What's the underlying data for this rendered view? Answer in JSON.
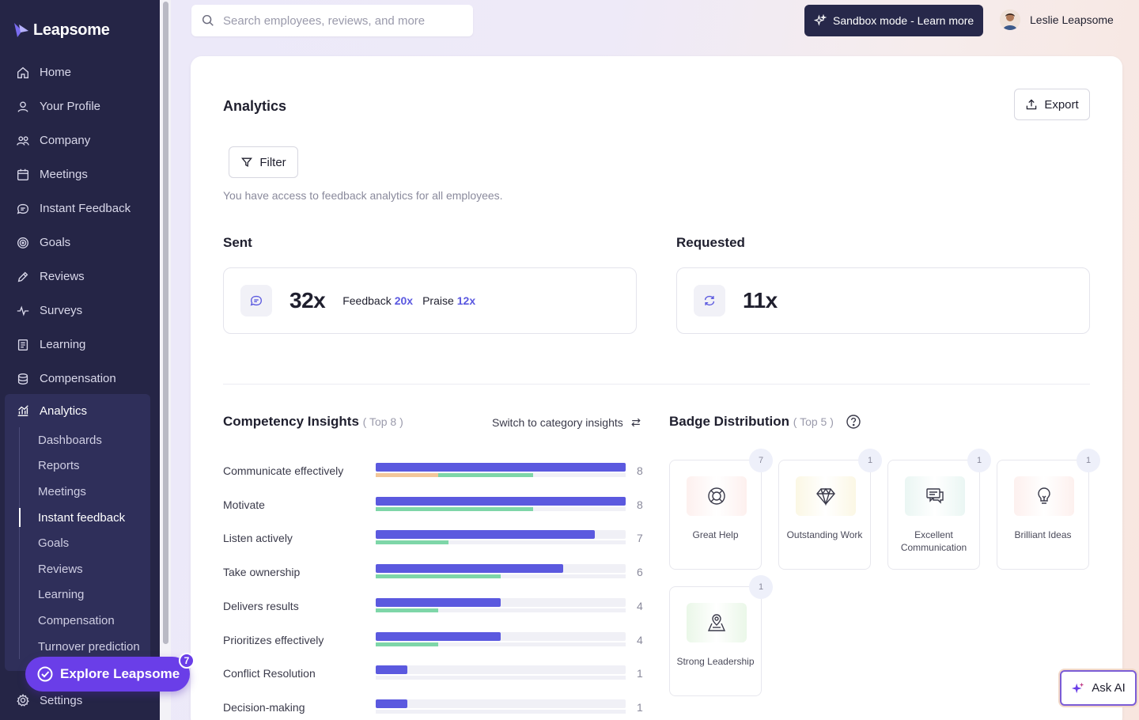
{
  "app": {
    "name": "Leapsome"
  },
  "sidebar": {
    "items": [
      {
        "label": "Home",
        "icon": "home-icon"
      },
      {
        "label": "Your Profile",
        "icon": "user-icon"
      },
      {
        "label": "Company",
        "icon": "users-icon"
      },
      {
        "label": "Meetings",
        "icon": "calendar-icon"
      },
      {
        "label": "Instant Feedback",
        "icon": "chat-icon"
      },
      {
        "label": "Goals",
        "icon": "target-icon"
      },
      {
        "label": "Reviews",
        "icon": "pen-icon"
      },
      {
        "label": "Surveys",
        "icon": "pulse-icon"
      },
      {
        "label": "Learning",
        "icon": "book-icon"
      },
      {
        "label": "Compensation",
        "icon": "coins-icon"
      }
    ],
    "analytics": {
      "label": "Analytics",
      "sub_items": [
        "Dashboards",
        "Reports",
        "Meetings",
        "Instant feedback",
        "Goals",
        "Reviews",
        "Learning",
        "Compensation",
        "Turnover prediction"
      ],
      "active_sub": "Instant feedback"
    },
    "settings_label": "Settings",
    "explore_label": "Explore Leapsome",
    "explore_badge": "7"
  },
  "topbar": {
    "search_placeholder": "Search employees, reviews, and more",
    "sandbox_label": "Sandbox mode - Learn more",
    "user_name": "Leslie Leapsome"
  },
  "page": {
    "title": "Analytics",
    "export_label": "Export",
    "filter_label": "Filter",
    "access_note": "You have access to feedback analytics for all employees."
  },
  "sent": {
    "heading": "Sent",
    "total": "32x",
    "feedback_label": "Feedback",
    "feedback_value": "20x",
    "praise_label": "Praise",
    "praise_value": "12x"
  },
  "requested": {
    "heading": "Requested",
    "total": "11x"
  },
  "competency": {
    "heading": "Competency Insights",
    "qualifier": "( Top 8 )",
    "switch_label": "Switch to category insights",
    "max": 8,
    "rows": [
      {
        "label": "Communicate effectively",
        "count": 8,
        "count_text": "8",
        "green": 0.63,
        "peach": 0.25
      },
      {
        "label": "Motivate",
        "count": 8,
        "count_text": "8",
        "green": 0.63,
        "peach": 0
      },
      {
        "label": "Listen actively",
        "count": 7,
        "count_text": "7",
        "green": 0.29,
        "peach": 0
      },
      {
        "label": "Take ownership",
        "count": 6,
        "count_text": "6",
        "green": 0.5,
        "peach": 0
      },
      {
        "label": "Delivers results",
        "count": 4,
        "count_text": "4",
        "green": 0.25,
        "peach": 0
      },
      {
        "label": "Prioritizes effectively",
        "count": 4,
        "count_text": "4",
        "green": 0.25,
        "peach": 0
      },
      {
        "label": "Conflict Resolution",
        "count": 1,
        "count_text": "1",
        "green": 0,
        "peach": 0
      },
      {
        "label": "Decision-making",
        "count": 1,
        "count_text": "1",
        "green": 0,
        "peach": 0
      }
    ]
  },
  "badges": {
    "heading": "Badge Distribution",
    "qualifier": "( Top 5 )",
    "items": [
      {
        "label": "Great Help",
        "count": "7",
        "icon": "lifebuoy-icon",
        "tint": "#fdf0ee"
      },
      {
        "label": "Outstanding Work",
        "count": "1",
        "icon": "diamond-icon",
        "tint": "#fbf7e4"
      },
      {
        "label": "Excellent Communication",
        "count": "1",
        "icon": "chat-bubbles-icon",
        "tint": "#eaf6f3"
      },
      {
        "label": "Brilliant Ideas",
        "count": "1",
        "icon": "lightbulb-icon",
        "tint": "#fdf0ee"
      },
      {
        "label": "Strong Leadership",
        "count": "1",
        "icon": "map-pin-icon",
        "tint": "#eaf7e8"
      }
    ]
  },
  "ask_ai_label": "Ask AI",
  "colors": {
    "sidebar": "#252546",
    "accent": "#5b59df",
    "explore": "#6a3ee8",
    "green": "#7ed6a8",
    "peach": "#f2c79a"
  }
}
